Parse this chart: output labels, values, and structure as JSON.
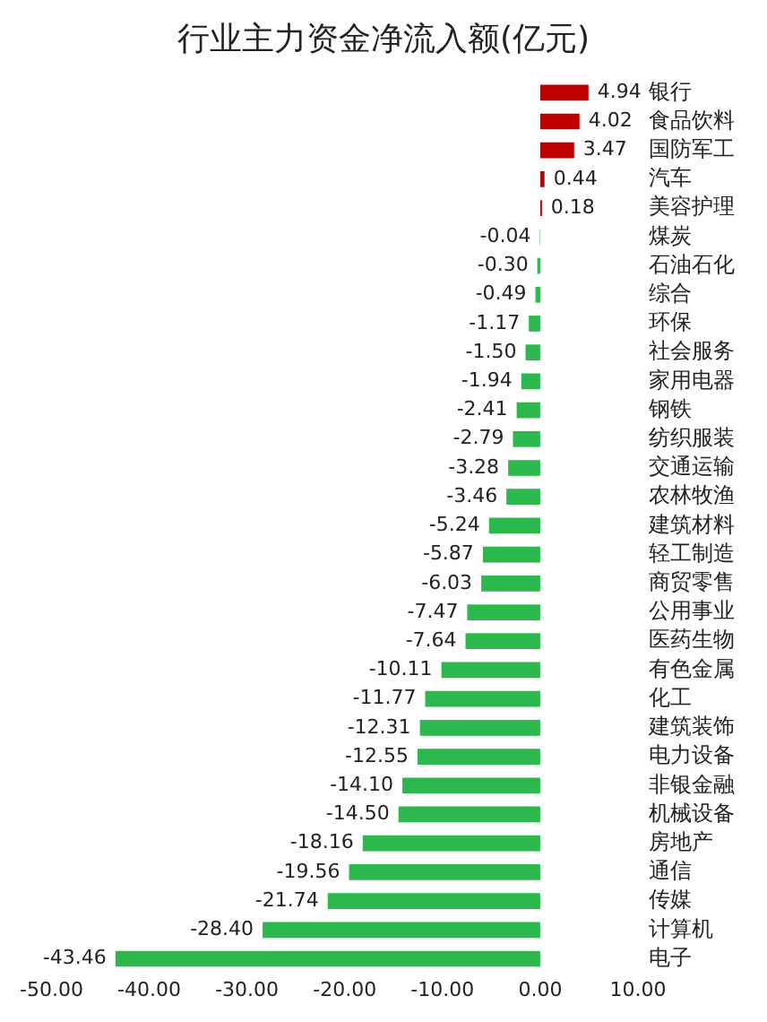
{
  "chart_data": {
    "type": "bar",
    "orientation": "horizontal",
    "title": "行业主力资金净流入额(亿元)",
    "categories": [
      "银行",
      "食品饮料",
      "国防军工",
      "汽车",
      "美容护理",
      "煤炭",
      "石油石化",
      "综合",
      "环保",
      "社会服务",
      "家用电器",
      "钢铁",
      "纺织服装",
      "交通运输",
      "农林牧渔",
      "建筑材料",
      "轻工制造",
      "商贸零售",
      "公用事业",
      "医药生物",
      "有色金属",
      "化工",
      "建筑装饰",
      "电力设备",
      "非银金融",
      "机械设备",
      "房地产",
      "通信",
      "传媒",
      "计算机",
      "电子"
    ],
    "values": [
      4.94,
      4.02,
      3.47,
      0.44,
      0.18,
      -0.04,
      -0.3,
      -0.49,
      -1.17,
      -1.5,
      -1.94,
      -2.41,
      -2.79,
      -3.28,
      -3.46,
      -5.24,
      -5.87,
      -6.03,
      -7.47,
      -7.64,
      -10.11,
      -11.77,
      -12.31,
      -12.55,
      -14.1,
      -14.5,
      -18.16,
      -19.56,
      -21.74,
      -28.4,
      -43.46
    ],
    "value_labels": [
      "4.94",
      "4.02",
      "3.47",
      "0.44",
      "0.18",
      "-0.04",
      "-0.30",
      "-0.49",
      "-1.17",
      "-1.50",
      "-1.94",
      "-2.41",
      "-2.79",
      "-3.28",
      "-3.46",
      "-5.24",
      "-5.87",
      "-6.03",
      "-7.47",
      "-7.64",
      "-10.11",
      "-11.77",
      "-12.31",
      "-12.55",
      "-14.10",
      "-14.50",
      "-18.16",
      "-19.56",
      "-21.74",
      "-28.40",
      "-43.46"
    ],
    "colors": [
      "#c00000",
      "#c00000",
      "#c00000",
      "#c00000",
      "#c00000",
      "#2db84d",
      "#2db84d",
      "#2db84d",
      "#2db84d",
      "#2db84d",
      "#2db84d",
      "#2db84d",
      "#2db84d",
      "#2db84d",
      "#2db84d",
      "#2db84d",
      "#2db84d",
      "#2db84d",
      "#2db84d",
      "#2db84d",
      "#2db84d",
      "#2db84d",
      "#2db84d",
      "#2db84d",
      "#2db84d",
      "#2db84d",
      "#2db84d",
      "#2db84d",
      "#2db84d",
      "#2db84d",
      "#2db84d"
    ],
    "xlim": [
      -50,
      10
    ],
    "xticks": [
      {
        "value": -50,
        "label": "-50.00"
      },
      {
        "value": -40,
        "label": "-40.00"
      },
      {
        "value": -30,
        "label": "-30.00"
      },
      {
        "value": -20,
        "label": "-20.00"
      },
      {
        "value": -10,
        "label": "-10.00"
      },
      {
        "value": 0,
        "label": "0.00"
      },
      {
        "value": 10,
        "label": "10.00"
      }
    ],
    "grid": false,
    "legend": false
  }
}
